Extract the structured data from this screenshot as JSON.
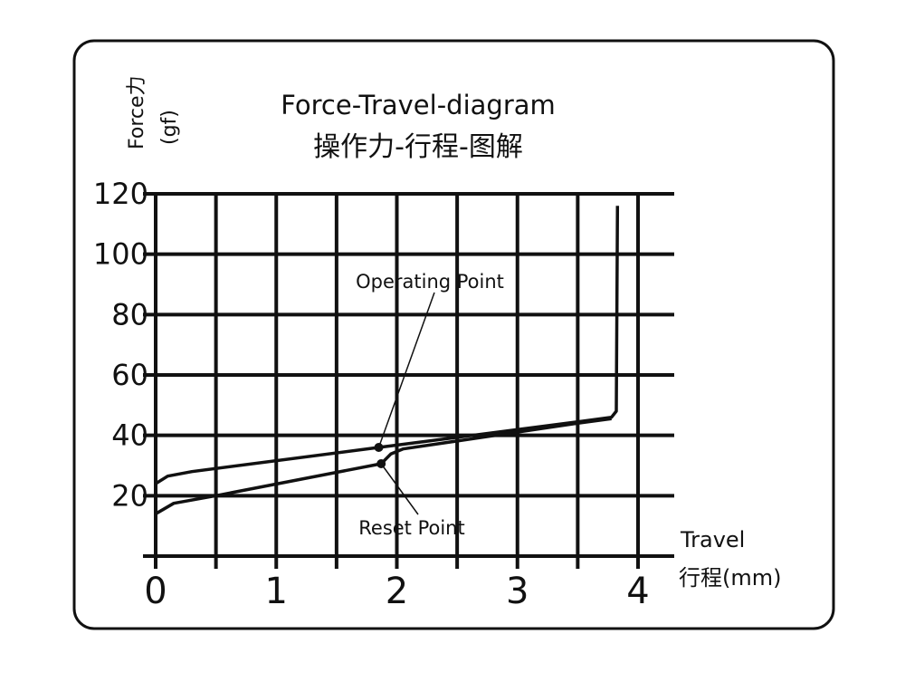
{
  "chart_data": {
    "type": "line",
    "title": "Force-Travel-diagram",
    "subtitle": "操作力-行程-图解",
    "ylabel": "Force力",
    "yunit": "(gf)",
    "xlabel": "Travel",
    "xunit": "行程(mm)",
    "xlim": [
      0,
      4
    ],
    "ylim": [
      0,
      120
    ],
    "xticks": [
      "0",
      "1",
      "2",
      "3",
      "4"
    ],
    "yticks": [
      "20",
      "40",
      "60",
      "80",
      "100",
      "120"
    ],
    "grid": true,
    "series": [
      {
        "points": [
          [
            0,
            24
          ],
          [
            0.1,
            26.5
          ],
          [
            0.3,
            28
          ],
          [
            1.85,
            36
          ],
          [
            3.5,
            44.5
          ],
          [
            3.78,
            46
          ],
          [
            3.82,
            48
          ],
          [
            3.83,
            116
          ]
        ]
      },
      {
        "points": [
          [
            0,
            14
          ],
          [
            0.15,
            17.5
          ],
          [
            0.5,
            20
          ],
          [
            1.87,
            30.6
          ],
          [
            1.95,
            33.8
          ],
          [
            2.05,
            35.5
          ],
          [
            3.5,
            44
          ],
          [
            3.78,
            45.5
          ]
        ]
      }
    ],
    "annotations": [
      {
        "text": "Operating Point",
        "x": 1.85,
        "y": 36
      },
      {
        "text": "Reset Point",
        "x": 1.87,
        "y": 30.6
      }
    ],
    "color": "#111111"
  }
}
